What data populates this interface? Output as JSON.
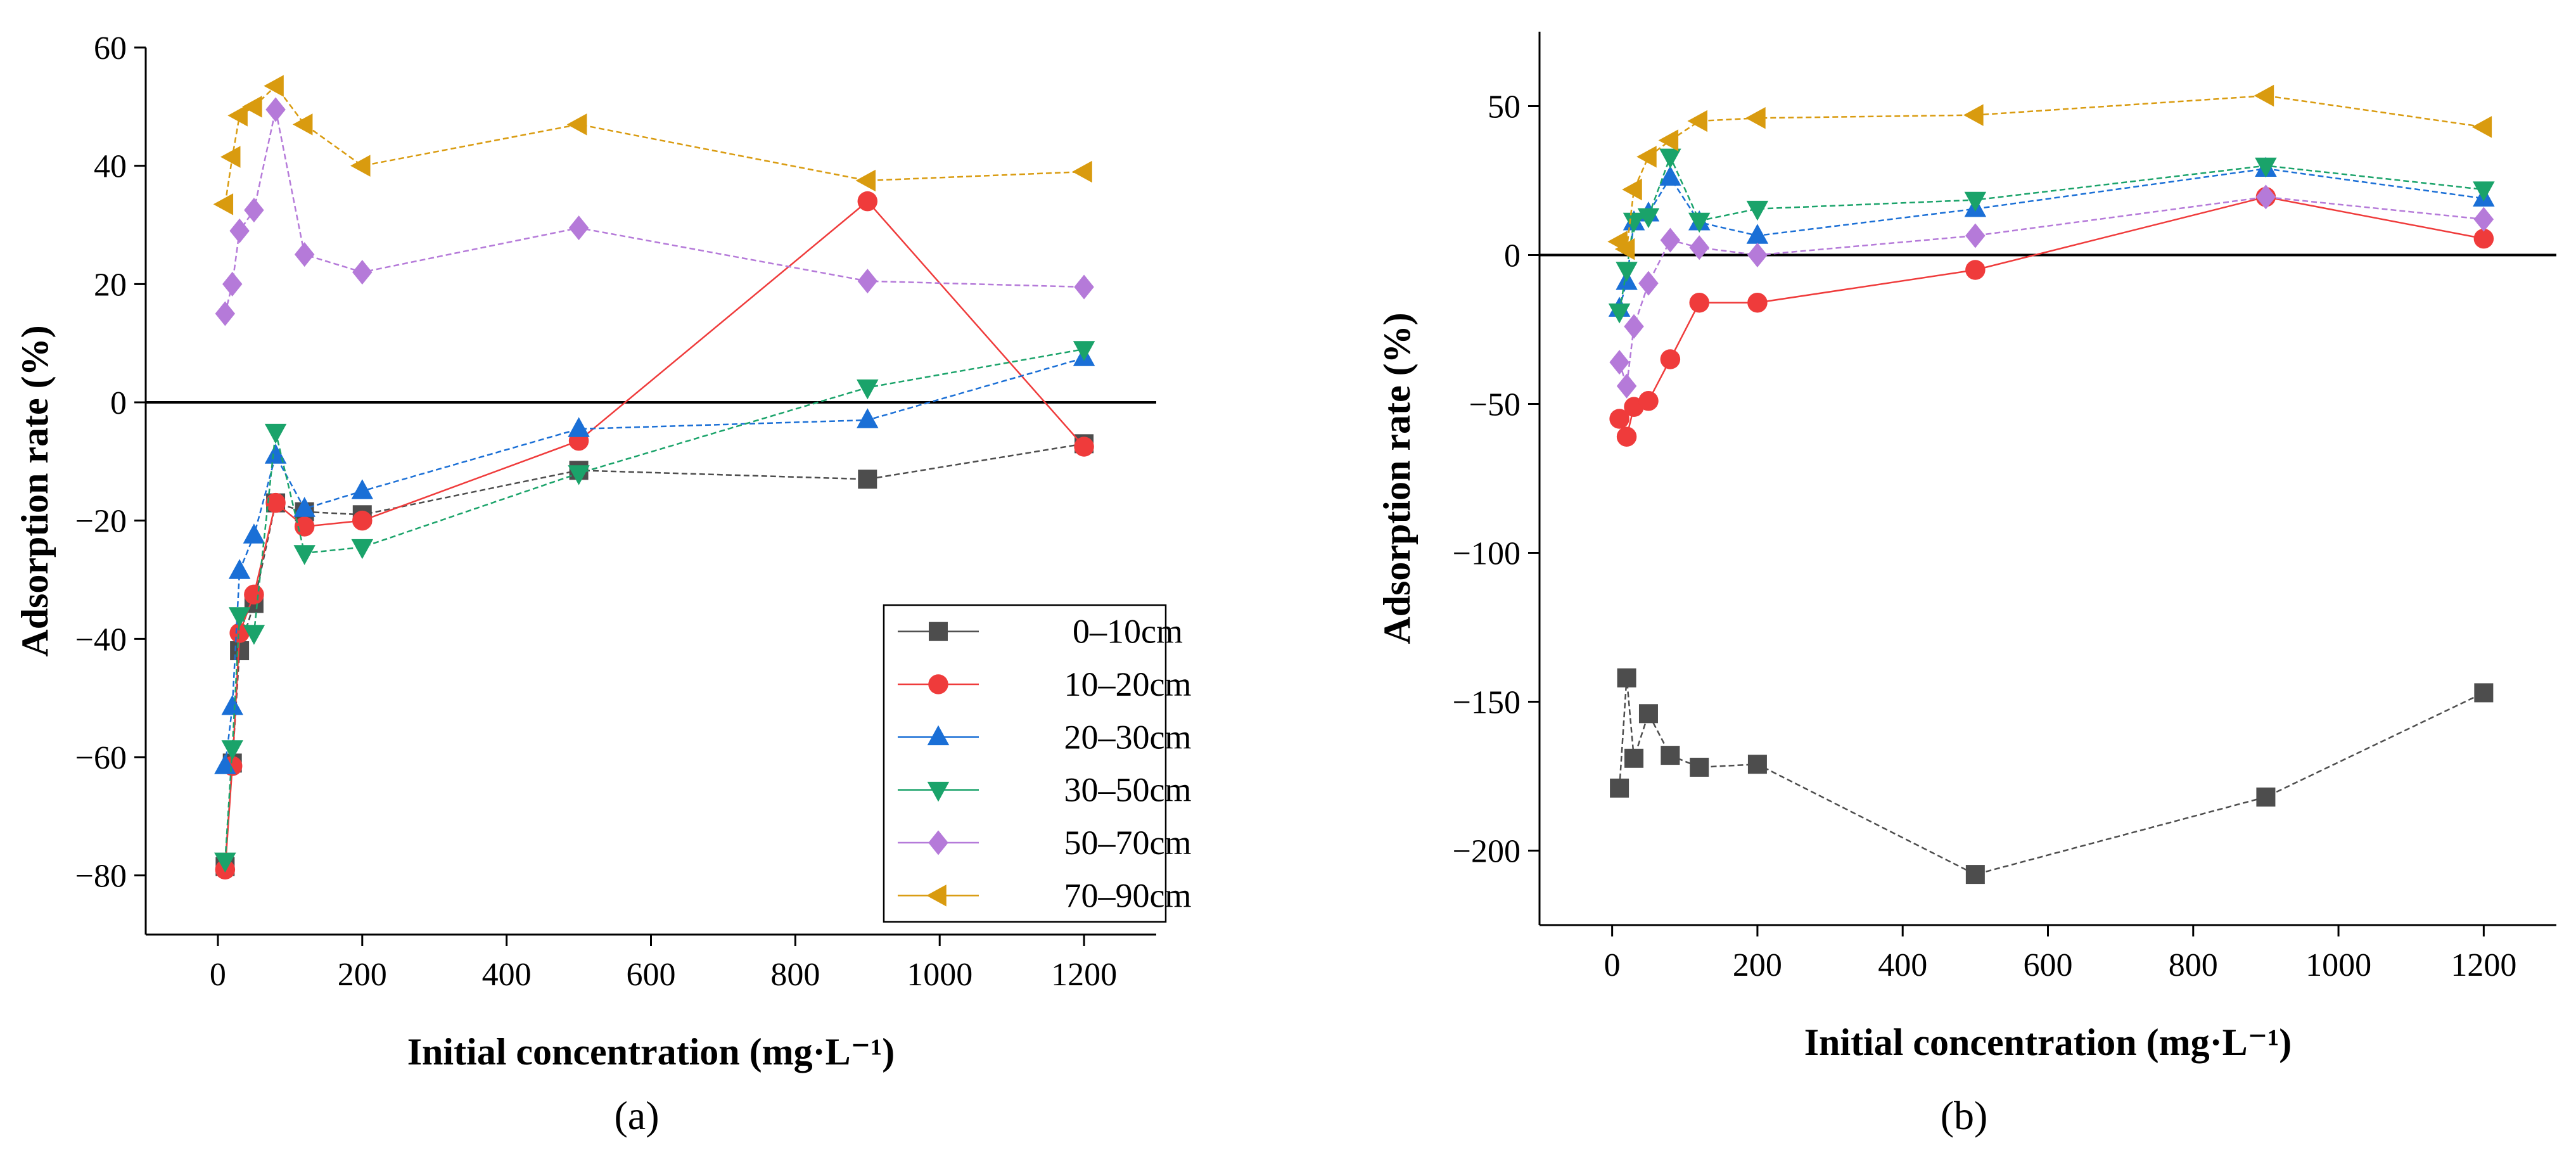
{
  "figure": {
    "panel_labels": [
      "(a)",
      "(b)"
    ]
  },
  "chart_data": [
    {
      "type": "line",
      "panel": "(a)",
      "xlabel": "Initial concentration (mg·L⁻¹)",
      "ylabel": "Adsorption rate (%)",
      "xlim": [
        -100,
        1300
      ],
      "ylim": [
        -90,
        60
      ],
      "xticks": [
        0,
        200,
        400,
        600,
        800,
        1000,
        1200
      ],
      "yticks": [
        -80,
        -60,
        -40,
        -20,
        0,
        20,
        40,
        60
      ],
      "zero_line": true,
      "legend_position": "bottom-right",
      "x": [
        10,
        20,
        30,
        50,
        80,
        120,
        200,
        500,
        900,
        1200
      ],
      "series": [
        {
          "name": "0–10cm",
          "color": "#4d4d4d",
          "marker": "square",
          "values": [
            -78.5,
            -61,
            -42,
            -34,
            -17,
            -18.5,
            -19,
            -11.5,
            -13,
            -7
          ]
        },
        {
          "name": "10–20cm",
          "color": "#ef3b3b",
          "marker": "circle",
          "values": [
            -79,
            -61.5,
            -39,
            -32.5,
            -17,
            -21,
            -20,
            -6.5,
            34,
            -7.5
          ]
        },
        {
          "name": "20–30cm",
          "color": "#1a6fd6",
          "marker": "triangle-up",
          "values": [
            -61.5,
            -51.5,
            -28.5,
            -22.5,
            -9,
            -18,
            -15,
            -4.5,
            -3,
            7.5
          ]
        },
        {
          "name": "30–50cm",
          "color": "#1aa36a",
          "marker": "triangle-down",
          "values": [
            -77.5,
            -58.5,
            -36,
            -39,
            -5,
            -25.5,
            -24.5,
            -12,
            2.5,
            9
          ]
        },
        {
          "name": "50–70cm",
          "color": "#b57ad9",
          "marker": "diamond",
          "values": [
            15,
            20,
            29,
            32.5,
            49.5,
            25,
            22,
            29.5,
            20.5,
            19.5
          ]
        },
        {
          "name": "70–90cm",
          "color": "#d99b0f",
          "marker": "triangle-left",
          "values": [
            33.5,
            41.5,
            48.5,
            50,
            53.5,
            47,
            40,
            47,
            37.5,
            39
          ]
        }
      ]
    },
    {
      "type": "line",
      "panel": "(b)",
      "xlabel": "Initial concentration (mg·L⁻¹)",
      "ylabel": "Adsorption rate (%)",
      "xlim": [
        -100,
        1300
      ],
      "ylim": [
        -225,
        75
      ],
      "xticks": [
        0,
        200,
        400,
        600,
        800,
        1000,
        1200
      ],
      "yticks": [
        -200,
        -150,
        -100,
        -50,
        0,
        50
      ],
      "zero_line": true,
      "x": [
        10,
        20,
        30,
        50,
        80,
        120,
        200,
        500,
        900,
        1200
      ],
      "series": [
        {
          "name": "0–10cm",
          "color": "#4d4d4d",
          "marker": "square",
          "values": [
            -179,
            -142,
            -169,
            -154,
            -168,
            -172,
            -171,
            -208,
            -182,
            -147
          ]
        },
        {
          "name": "10–20cm",
          "color": "#ef3b3b",
          "marker": "circle",
          "values": [
            -55,
            -61,
            -51,
            -49,
            -35,
            -16,
            -16,
            -5,
            19.5,
            5.5
          ]
        },
        {
          "name": "20–30cm",
          "color": "#1a6fd6",
          "marker": "triangle-up",
          "values": [
            -18,
            -9,
            11,
            14,
            26,
            11,
            6.5,
            15.5,
            29,
            19
          ]
        },
        {
          "name": "30–50cm",
          "color": "#1aa36a",
          "marker": "triangle-down",
          "values": [
            -19,
            -5,
            11.5,
            13,
            33,
            11.5,
            15.5,
            18.5,
            30,
            22
          ]
        },
        {
          "name": "50–70cm",
          "color": "#b57ad9",
          "marker": "diamond",
          "values": [
            -36,
            -44,
            -24,
            -9.5,
            5,
            2.5,
            0,
            6.5,
            19.5,
            12
          ]
        },
        {
          "name": "70–90cm",
          "color": "#d99b0f",
          "marker": "triangle-left",
          "values": [
            4.5,
            2,
            22,
            33,
            38.5,
            45,
            46,
            47,
            53.5,
            43
          ]
        }
      ]
    }
  ]
}
